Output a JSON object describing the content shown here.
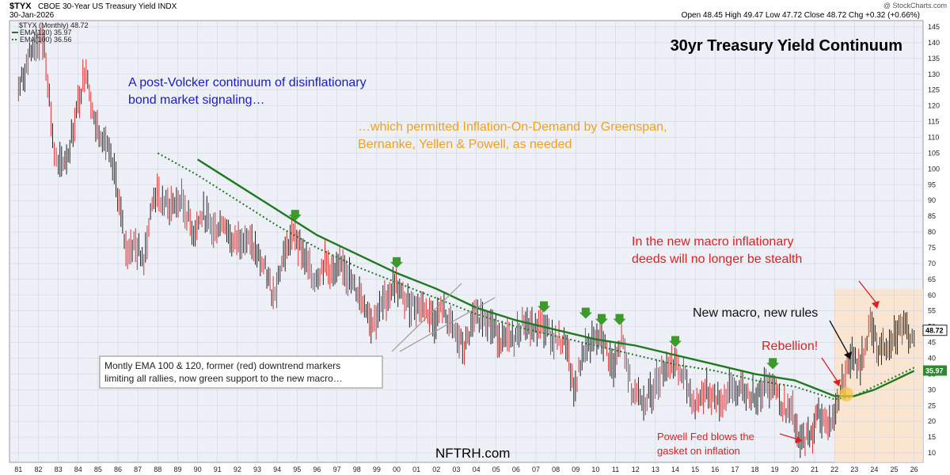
{
  "header": {
    "symbol": "$TYX",
    "name": "CBOE 30-Year US Treasury Yield INDX",
    "date": "30-Jan-2026",
    "ohlc": "Open 48.45  High 49.47  Low 47.72  Close 48.72  Chg +0.32 (+0.66%)",
    "watermark": "@ StockCharts.com",
    "legend_price": "$TYX (Monthly) 48.72",
    "legend_ema120": "EMA(120) 35.97",
    "legend_ema100": "EMA(100) 36.56"
  },
  "chart_data": {
    "type": "line",
    "title": "30yr Treasury Yield Continuum",
    "x_ticks": [
      "81",
      "82",
      "83",
      "84",
      "85",
      "86",
      "87",
      "88",
      "89",
      "90",
      "91",
      "92",
      "93",
      "94",
      "95",
      "96",
      "97",
      "98",
      "99",
      "00",
      "01",
      "02",
      "03",
      "04",
      "05",
      "06",
      "07",
      "08",
      "09",
      "10",
      "11",
      "12",
      "13",
      "14",
      "15",
      "16",
      "17",
      "18",
      "19",
      "20",
      "21",
      "22",
      "23",
      "24",
      "25",
      "26"
    ],
    "y_ticks": [
      10,
      15,
      20,
      25,
      30,
      35,
      40,
      45,
      50,
      55,
      60,
      65,
      70,
      75,
      80,
      85,
      90,
      95,
      100,
      105,
      110,
      115,
      120,
      125,
      130,
      135,
      140,
      145
    ],
    "ylim": [
      7,
      147
    ],
    "grid": true,
    "last_price": "48.72",
    "last_ema": "35.97",
    "series": [
      {
        "name": "$TYX (Monthly)",
        "color": "#e03030",
        "points": [
          [
            1981.0,
            125
          ],
          [
            1981.8,
            140
          ],
          [
            1982.3,
            140
          ],
          [
            1982.8,
            105
          ],
          [
            1983.0,
            100
          ],
          [
            1983.5,
            105
          ],
          [
            1984.4,
            133
          ],
          [
            1984.8,
            115
          ],
          [
            1985.3,
            110
          ],
          [
            1985.9,
            96
          ],
          [
            1986.4,
            74
          ],
          [
            1986.8,
            76
          ],
          [
            1987.3,
            72
          ],
          [
            1987.8,
            92
          ],
          [
            1988.5,
            88
          ],
          [
            1989.2,
            90
          ],
          [
            1989.8,
            80
          ],
          [
            1990.3,
            86
          ],
          [
            1990.8,
            80
          ],
          [
            1991.3,
            84
          ],
          [
            1991.8,
            76
          ],
          [
            1992.3,
            79
          ],
          [
            1992.9,
            74
          ],
          [
            1993.4,
            68
          ],
          [
            1993.8,
            60
          ],
          [
            1994.4,
            74
          ],
          [
            1994.9,
            80
          ],
          [
            1995.3,
            73
          ],
          [
            1995.8,
            65
          ],
          [
            1996.4,
            70
          ],
          [
            1996.9,
            66
          ],
          [
            1997.3,
            70
          ],
          [
            1997.8,
            63
          ],
          [
            1998.3,
            59
          ],
          [
            1998.8,
            51
          ],
          [
            1999.4,
            58
          ],
          [
            1999.9,
            64
          ],
          [
            2000.4,
            58
          ],
          [
            2000.9,
            57
          ],
          [
            2001.4,
            56
          ],
          [
            2001.9,
            52
          ],
          [
            2002.3,
            56
          ],
          [
            2002.8,
            49
          ],
          [
            2003.4,
            43
          ],
          [
            2003.9,
            52
          ],
          [
            2004.4,
            54
          ],
          [
            2004.9,
            49
          ],
          [
            2005.4,
            45
          ],
          [
            2005.9,
            46
          ],
          [
            2006.4,
            52
          ],
          [
            2006.8,
            49
          ],
          [
            2007.4,
            50
          ],
          [
            2007.9,
            46
          ],
          [
            2008.5,
            45
          ],
          [
            2008.9,
            29
          ],
          [
            2009.4,
            43
          ],
          [
            2009.9,
            45
          ],
          [
            2010.3,
            47
          ],
          [
            2010.9,
            36
          ],
          [
            2011.3,
            46
          ],
          [
            2011.8,
            31
          ],
          [
            2012.5,
            27
          ],
          [
            2012.9,
            30
          ],
          [
            2013.4,
            37
          ],
          [
            2013.9,
            39
          ],
          [
            2014.5,
            33
          ],
          [
            2015.0,
            25
          ],
          [
            2015.5,
            30
          ],
          [
            2016.3,
            26
          ],
          [
            2016.8,
            30
          ],
          [
            2017.3,
            30
          ],
          [
            2017.9,
            28
          ],
          [
            2018.3,
            30
          ],
          [
            2018.9,
            33
          ],
          [
            2019.4,
            25
          ],
          [
            2019.9,
            22
          ],
          [
            2020.2,
            13
          ],
          [
            2020.6,
            15
          ],
          [
            2020.9,
            17
          ],
          [
            2021.2,
            23
          ],
          [
            2021.6,
            19
          ],
          [
            2021.9,
            20
          ],
          [
            2022.3,
            30
          ],
          [
            2022.8,
            40
          ],
          [
            2023.3,
            38
          ],
          [
            2023.8,
            50
          ],
          [
            2024.2,
            43
          ],
          [
            2024.6,
            44
          ],
          [
            2025.0,
            48
          ],
          [
            2025.4,
            50
          ],
          [
            2025.8,
            47
          ],
          [
            2026.0,
            48.7
          ]
        ]
      },
      {
        "name": "EMA(120)",
        "color": "#1e7a1e",
        "points": [
          [
            1990.0,
            103
          ],
          [
            1992.0,
            95
          ],
          [
            1994.0,
            87
          ],
          [
            1996.0,
            79
          ],
          [
            1998.0,
            73
          ],
          [
            2000.0,
            67
          ],
          [
            2002.0,
            62
          ],
          [
            2004.0,
            56
          ],
          [
            2006.0,
            52
          ],
          [
            2008.0,
            49
          ],
          [
            2010.0,
            46
          ],
          [
            2012.0,
            44
          ],
          [
            2014.0,
            41
          ],
          [
            2016.0,
            38
          ],
          [
            2018.0,
            35
          ],
          [
            2020.0,
            33
          ],
          [
            2022.0,
            28
          ],
          [
            2023.0,
            28
          ],
          [
            2024.0,
            30
          ],
          [
            2025.0,
            33
          ],
          [
            2026.0,
            36
          ]
        ]
      },
      {
        "name": "EMA(100)",
        "color": "#1e7a1e",
        "dashed": true,
        "points": [
          [
            1988.0,
            105
          ],
          [
            1990.0,
            98
          ],
          [
            1992.0,
            90
          ],
          [
            1994.0,
            82
          ],
          [
            1996.0,
            75
          ],
          [
            1998.0,
            69
          ],
          [
            2000.0,
            64
          ],
          [
            2002.0,
            59
          ],
          [
            2004.0,
            54
          ],
          [
            2006.0,
            50
          ],
          [
            2008.0,
            47
          ],
          [
            2010.0,
            44
          ],
          [
            2012.0,
            41
          ],
          [
            2014.0,
            38
          ],
          [
            2016.0,
            36
          ],
          [
            2018.0,
            33
          ],
          [
            2020.0,
            31
          ],
          [
            2022.0,
            27
          ],
          [
            2023.0,
            28
          ],
          [
            2024.0,
            31
          ],
          [
            2025.0,
            34
          ],
          [
            2026.0,
            37
          ]
        ]
      }
    ],
    "down_arrows": [
      [
        1994.9,
        82
      ],
      [
        2000.0,
        67
      ],
      [
        2007.4,
        53
      ],
      [
        2009.5,
        51
      ],
      [
        2010.3,
        49
      ],
      [
        2011.2,
        49
      ],
      [
        2014.0,
        42
      ],
      [
        2018.9,
        35
      ]
    ],
    "annotations": {
      "blue_line1": "A post-Volcker continuum of disinflationary",
      "blue_line2": "bond market signaling…",
      "orange_line1": "…which permitted Inflation-On-Demand by Greenspan,",
      "orange_line2": "Bernanke, Yellen & Powell, as needed",
      "red_line1": "In the new macro inflationary",
      "red_line2": "deeds will no longer be stealth",
      "new_macro": "New macro, new rules",
      "rebellion": "Rebellion!",
      "powell_line1": "Powell Fed blows the",
      "powell_line2": "gasket on inflation",
      "callout_line1": "Montly EMA 100 & 120, former (red) downtrend markers",
      "callout_line2": "limiting all rallies, now green support to the new macro…",
      "brand": "NFTRH.com"
    },
    "colors": {
      "plot_bg": "#eef0f8",
      "shade": "#fbe3cc",
      "grid": "#d2d4de"
    }
  }
}
